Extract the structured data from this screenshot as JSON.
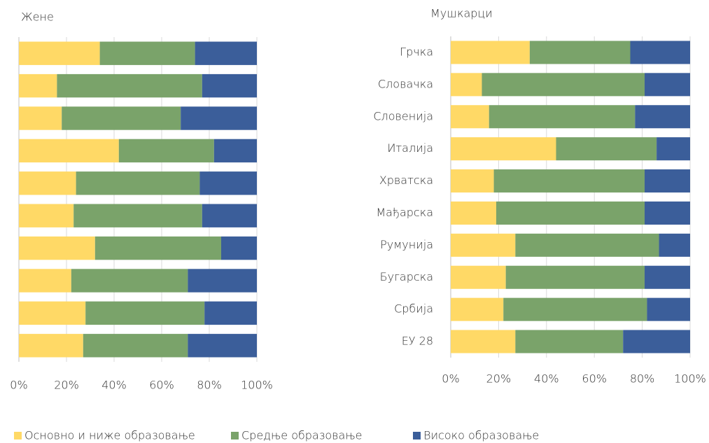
{
  "chart_data": [
    {
      "type": "bar",
      "orientation": "horizontal",
      "title": "Жене",
      "categories": [
        null,
        null,
        null,
        null,
        null,
        null,
        null,
        null,
        null,
        null
      ],
      "series": [
        {
          "name": "Основно и ниже образовање",
          "color": "#ffd966",
          "values": [
            34,
            16,
            18,
            42,
            24,
            23,
            32,
            22,
            28,
            27
          ]
        },
        {
          "name": "Средње образовање",
          "color": "#7aa36a",
          "values": [
            40,
            61,
            50,
            40,
            52,
            54,
            53,
            49,
            50,
            44
          ]
        },
        {
          "name": "Високо образовање",
          "color": "#3b5e9a",
          "values": [
            26,
            23,
            32,
            18,
            24,
            23,
            15,
            29,
            22,
            29
          ]
        }
      ],
      "xlim": [
        0,
        100
      ],
      "xticks": [
        {
          "value": 0,
          "label": "0%"
        },
        {
          "value": 20,
          "label": "20%"
        },
        {
          "value": 40,
          "label": "40%"
        },
        {
          "value": 60,
          "label": "60%"
        },
        {
          "value": 80,
          "label": "80%"
        },
        {
          "value": 100,
          "label": "100%"
        }
      ],
      "grid": true
    },
    {
      "type": "bar",
      "orientation": "horizontal",
      "title": "Мушкарци",
      "categories": [
        "Грчка",
        "Словачка",
        "Словенија",
        "Италија",
        "Хрватска",
        "Мађарска",
        "Румунија",
        "Бугарска",
        "Србија",
        "ЕУ 28"
      ],
      "series": [
        {
          "values": [
            33,
            13,
            16,
            44,
            18,
            19,
            27,
            23,
            22,
            27
          ]
        },
        {
          "values": [
            42,
            68,
            61,
            42,
            63,
            62,
            60,
            58,
            60,
            45
          ]
        },
        {
          "values": [
            25,
            19,
            23,
            14,
            19,
            19,
            13,
            19,
            18,
            28
          ]
        }
      ],
      "xlim": [
        0,
        100
      ],
      "xticks": [
        {
          "value": 0,
          "label": "0%"
        },
        {
          "value": 20,
          "label": "20%"
        },
        {
          "value": 40,
          "label": "40%"
        },
        {
          "value": 60,
          "label": "60%"
        },
        {
          "value": 80,
          "label": "80%"
        },
        {
          "value": 100,
          "label": "100%"
        }
      ],
      "grid": true
    }
  ]
}
